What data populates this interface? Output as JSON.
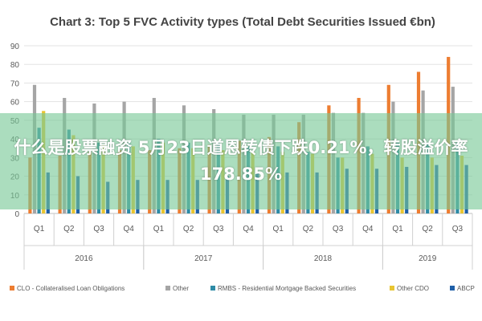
{
  "overlay_caption": "什么是股票融资 5月23日道恩转债下跌0.21%，转股溢价率178.85%",
  "chart_data": {
    "type": "bar",
    "title": "Chart 3: Top 5 FVC Activity types (Total Debt Securities Issued €bn)",
    "xlabel": "",
    "ylabel": "",
    "ylim": [
      0,
      90
    ],
    "yticks": [
      0,
      10,
      20,
      30,
      40,
      50,
      60,
      70,
      80,
      90
    ],
    "grid": true,
    "legend_position": "bottom",
    "categories": [
      "Q1",
      "Q2",
      "Q3",
      "Q4",
      "Q1",
      "Q2",
      "Q3",
      "Q4",
      "Q1",
      "Q2",
      "Q3",
      "Q4",
      "Q1",
      "Q2",
      "Q3"
    ],
    "groups": [
      {
        "label": "2016",
        "count": 4
      },
      {
        "label": "2017",
        "count": 4
      },
      {
        "label": "2018",
        "count": 4
      },
      {
        "label": "2019",
        "count": 3
      }
    ],
    "series": [
      {
        "name": "CLO - Collateralised Loan Obligations",
        "color": "#ED7D31",
        "values": [
          30,
          31,
          33,
          34,
          34,
          35,
          37,
          39,
          41,
          49,
          58,
          62,
          69,
          76,
          84
        ]
      },
      {
        "name": "Other",
        "color": "#A5A5A5",
        "values": [
          69,
          62,
          59,
          60,
          62,
          58,
          56,
          53,
          53,
          53,
          54,
          54,
          60,
          66,
          68
        ]
      },
      {
        "name": "RMBS - Residential Mortgage Backed Securities",
        "color": "#2E8BA6",
        "values": [
          46,
          45,
          38,
          38,
          40,
          38,
          38,
          36,
          36,
          33,
          30,
          36,
          38,
          38,
          38
        ]
      },
      {
        "name": "Other CDO",
        "color": "#E8C532",
        "values": [
          55,
          42,
          37,
          36,
          38,
          35,
          34,
          33,
          33,
          32,
          30,
          32,
          30,
          30,
          31
        ]
      },
      {
        "name": "ABCP",
        "color": "#1F5FA8",
        "values": [
          22,
          20,
          17,
          18,
          18,
          18,
          20,
          22,
          22,
          22,
          24,
          24,
          25,
          26,
          26
        ]
      }
    ]
  }
}
